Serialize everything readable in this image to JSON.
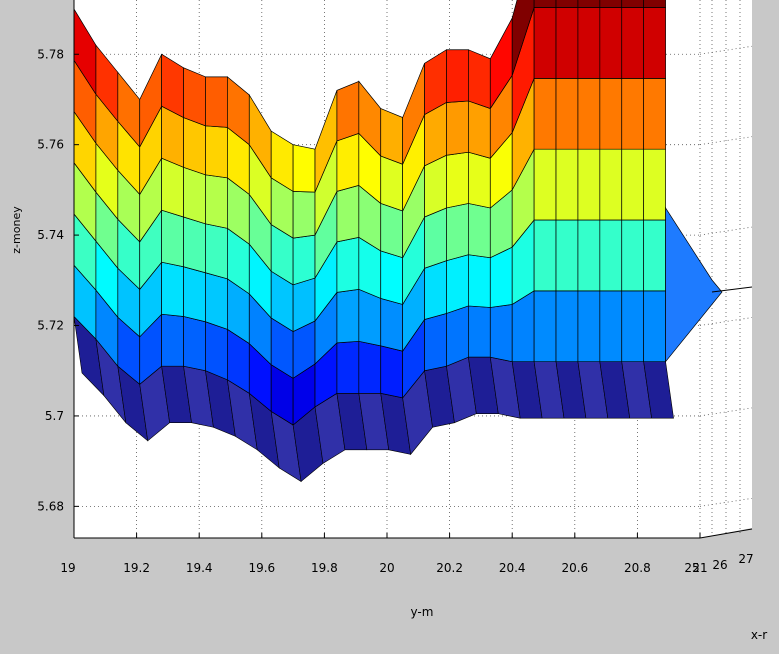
{
  "chart_data": {
    "type": "surface",
    "title": "",
    "xlabel": "y-m",
    "ylabel": "x-r",
    "zlabel": "z-money",
    "x_ticks": [
      "19",
      "19.2",
      "19.4",
      "19.6",
      "19.8",
      "20",
      "20.2",
      "20.4",
      "20.6",
      "20.8",
      "21"
    ],
    "depth_ticks": [
      "25",
      "26",
      "27"
    ],
    "z_ticks": [
      "5.68",
      "5.7",
      "5.72",
      "5.74",
      "5.76",
      "5.78"
    ],
    "xlim": [
      19,
      21
    ],
    "zlim": [
      5.673,
      5.792
    ],
    "colormap": "jet",
    "grid": true,
    "front_edge": {
      "x": [
        19.0,
        19.07,
        19.14,
        19.21,
        19.28,
        19.35,
        19.42,
        19.49,
        19.56,
        19.63,
        19.7,
        19.77,
        19.84,
        19.91,
        19.98,
        20.05,
        20.12,
        20.19,
        20.26,
        20.33,
        20.4,
        20.47,
        20.54,
        20.61,
        20.68,
        20.75,
        20.82,
        20.89
      ],
      "z_top": [
        5.79,
        5.782,
        5.776,
        5.77,
        5.78,
        5.777,
        5.775,
        5.775,
        5.771,
        5.763,
        5.76,
        5.759,
        5.772,
        5.774,
        5.768,
        5.766,
        5.778,
        5.781,
        5.781,
        5.779,
        5.788,
        5.806,
        5.806,
        5.806,
        5.806,
        5.806,
        5.806,
        5.806
      ],
      "z_bottom": [
        5.722,
        5.717,
        5.711,
        5.707,
        5.711,
        5.711,
        5.71,
        5.708,
        5.705,
        5.701,
        5.698,
        5.702,
        5.705,
        5.705,
        5.705,
        5.704,
        5.71,
        5.711,
        5.713,
        5.713,
        5.712,
        5.712,
        5.712,
        5.712,
        5.712,
        5.712,
        5.712,
        5.712
      ]
    }
  }
}
